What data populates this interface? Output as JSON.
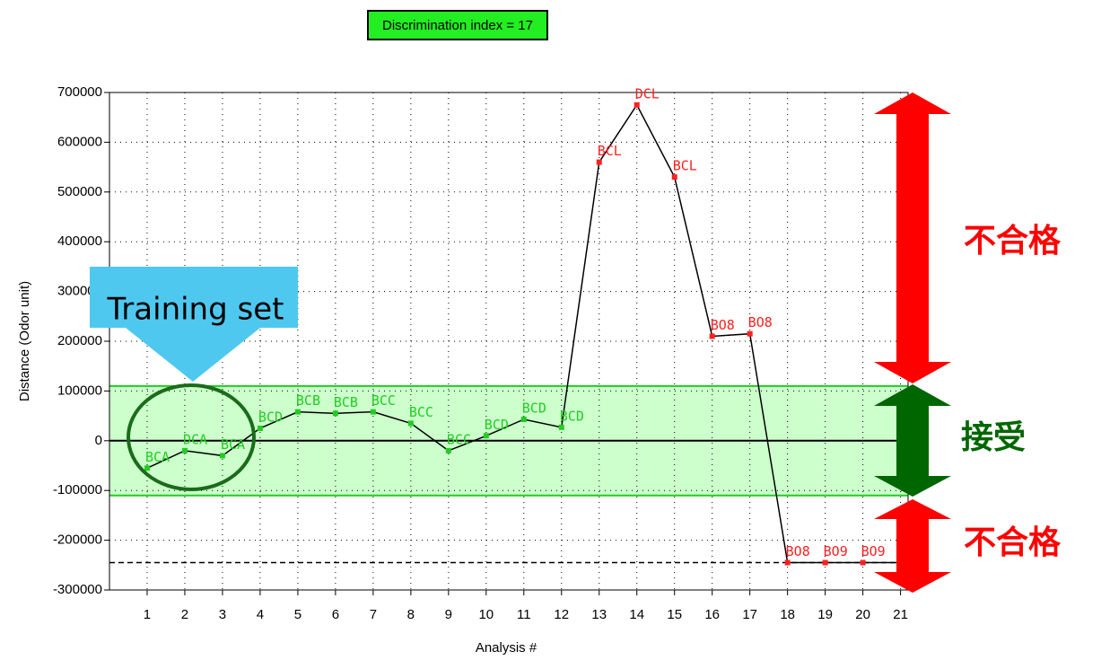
{
  "chart_data": {
    "type": "line",
    "title": "Discrimination index = 17",
    "x_label": "Analysis #",
    "y_label": "Distance (Odor  unit)",
    "x": [
      1,
      2,
      3,
      4,
      5,
      6,
      7,
      8,
      9,
      10,
      11,
      12,
      13,
      14,
      15,
      16,
      17,
      18,
      19,
      20,
      21
    ],
    "series": [
      {
        "color": "#000000",
        "values": [
          -55000,
          -20000,
          -30000,
          25000,
          58000,
          55000,
          58000,
          35000,
          -20000,
          10000,
          43000,
          27000,
          560000,
          675000,
          530000,
          210000,
          215000,
          -245000,
          -245000,
          -245000,
          -245000
        ],
        "point_labels": [
          "BCA",
          "DCA",
          "BCA",
          "BCD",
          "BCB",
          "BCB",
          "BCC",
          "BCC",
          "BCC",
          "BCD",
          "BCD",
          "BCD",
          "BCL",
          "DCL",
          "BCL",
          "BO8",
          "BO8",
          "BO8",
          "BO9",
          "BO9",
          null
        ],
        "point_colors": [
          "#22cc22",
          "#22cc22",
          "#22cc22",
          "#22cc22",
          "#22cc22",
          "#22cc22",
          "#22cc22",
          "#22cc22",
          "#22cc22",
          "#22cc22",
          "#22cc22",
          "#22cc22",
          "#ff2020",
          "#ff2020",
          "#ff2020",
          "#ff2020",
          "#ff2020",
          "#ff2020",
          "#ff2020",
          "#ff2020",
          "#ff2020"
        ]
      }
    ],
    "band": [
      -110000,
      110000
    ],
    "band_color": "#ccffcc",
    "threshold": -245000,
    "xlim": [
      0,
      21.2
    ],
    "ylim": [
      -300000,
      700000
    ],
    "xticks": [
      1,
      2,
      3,
      4,
      5,
      6,
      7,
      8,
      9,
      10,
      11,
      12,
      13,
      14,
      15,
      16,
      17,
      18,
      19,
      20,
      21
    ],
    "yticks": [
      -300000,
      -200000,
      -100000,
      0,
      100000,
      200000,
      300000,
      400000,
      500000,
      600000,
      700000
    ],
    "grid": true,
    "annotations": {
      "training": "Training set",
      "reject_top": "不合格",
      "accept": "接受",
      "reject_bottom": "不合格"
    }
  }
}
